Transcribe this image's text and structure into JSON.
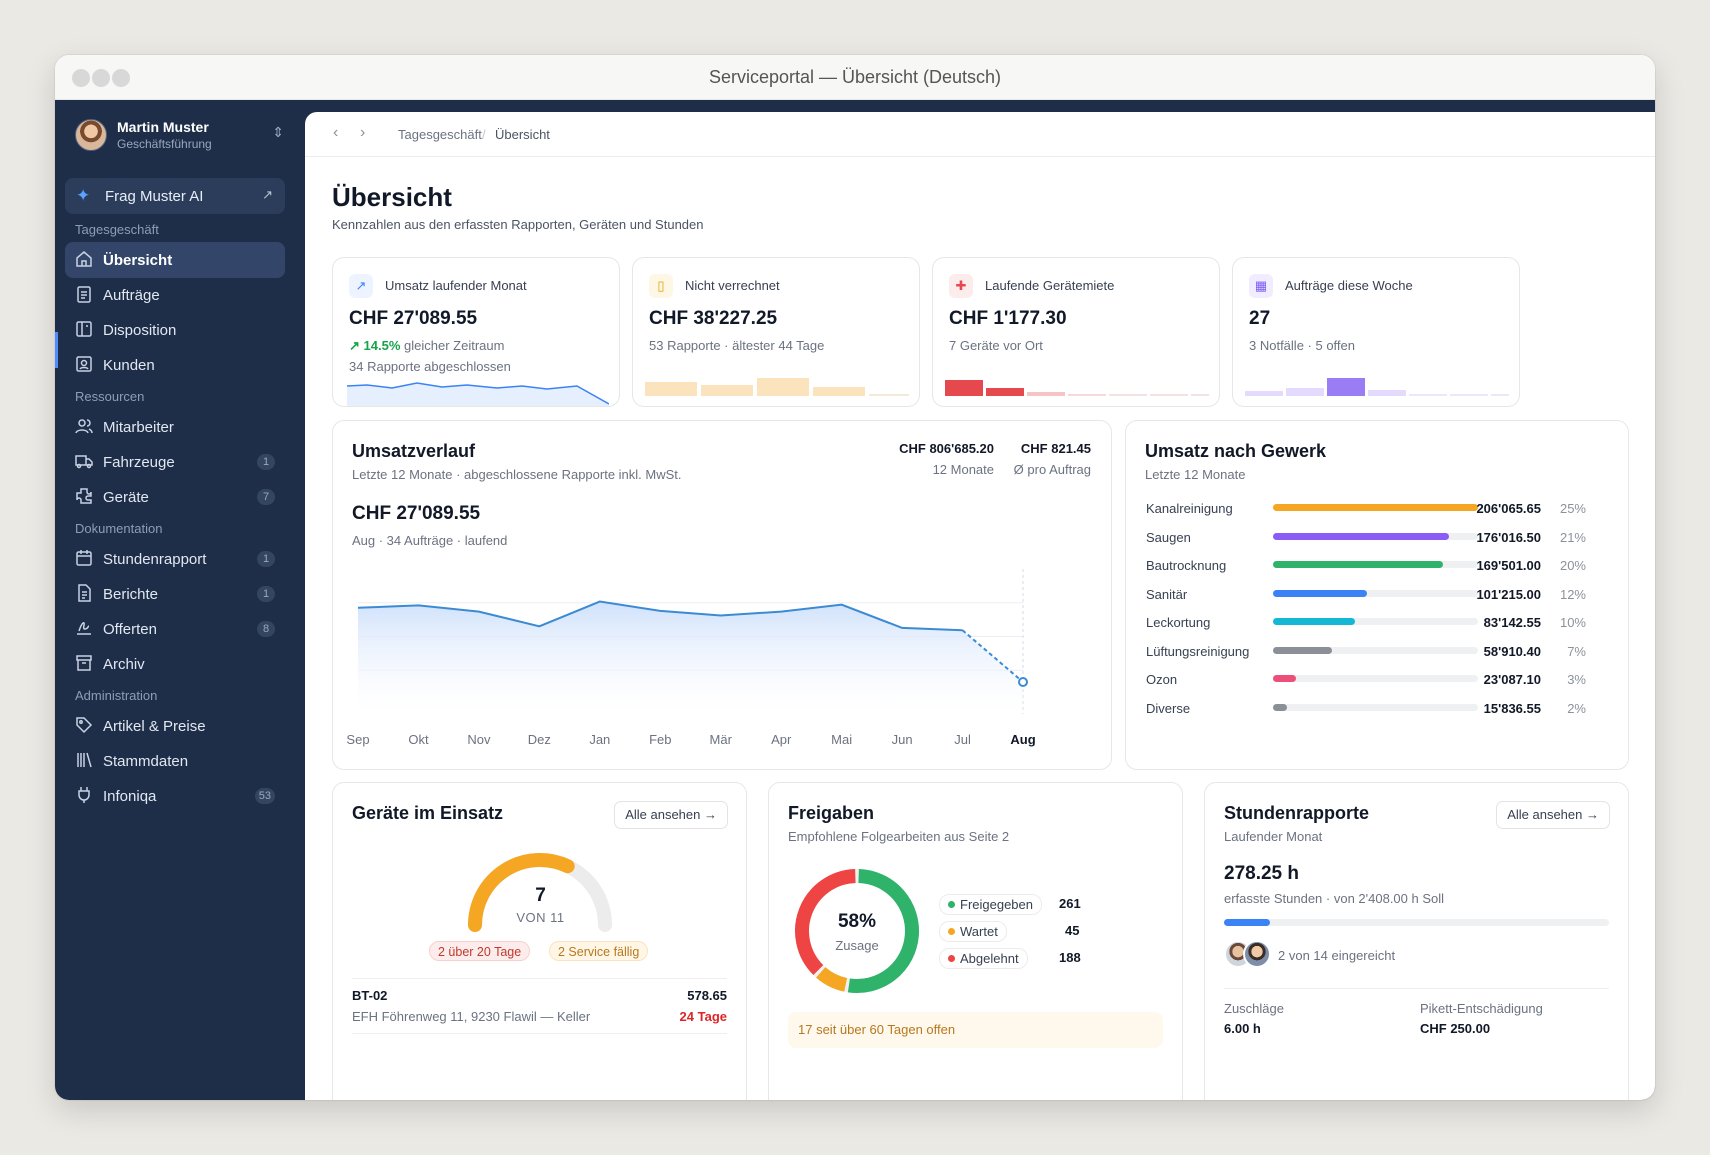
{
  "window": {
    "title": "Serviceportal — Übersicht (Deutsch)"
  },
  "user": {
    "name": "Martin Muster",
    "role": "Geschäftsführung"
  },
  "ai": {
    "label": "Frag Muster AI"
  },
  "sidebar": {
    "sections": [
      "Tagesgeschäft",
      "Ressourcen",
      "Dokumentation",
      "Administration"
    ],
    "items": [
      {
        "label": "Übersicht",
        "badge": ""
      },
      {
        "label": "Aufträge",
        "badge": ""
      },
      {
        "label": "Disposition",
        "badge": ""
      },
      {
        "label": "Kunden",
        "badge": ""
      },
      {
        "label": "Mitarbeiter",
        "badge": ""
      },
      {
        "label": "Fahrzeuge",
        "badge": "1"
      },
      {
        "label": "Geräte",
        "badge": "7"
      },
      {
        "label": "Stundenrapport",
        "badge": "1"
      },
      {
        "label": "Berichte",
        "badge": "1"
      },
      {
        "label": "Offerten",
        "badge": "8"
      },
      {
        "label": "Archiv",
        "badge": ""
      },
      {
        "label": "Artikel & Preise",
        "badge": ""
      },
      {
        "label": "Stammdaten",
        "badge": ""
      },
      {
        "label": "Infoniqa",
        "badge": "53"
      }
    ]
  },
  "breadcrumb": {
    "parent": "Tagesgeschäft",
    "separator": "/",
    "current": "Übersicht"
  },
  "page": {
    "title": "Übersicht",
    "subtitle": "Kennzahlen aus den erfassten Rapporten, Geräten und Stunden"
  },
  "kpis": [
    {
      "label": "Umsatz laufender Monat",
      "value": "CHF 27'089.55",
      "trend": "14.5%",
      "trend_text": "gleicher Zeitraum",
      "sub2": "34 Rapporte abgeschlossen"
    },
    {
      "label": "Nicht verrechnet",
      "value": "CHF 38'227.25",
      "sub": "53 Rapporte · ältester 44 Tage"
    },
    {
      "label": "Laufende Gerätemiete",
      "value": "CHF 1'177.30",
      "sub": "7 Geräte vor Ort"
    },
    {
      "label": "Aufträge diese Woche",
      "value": "27",
      "sub": "3 Notfälle · 5 offen"
    }
  ],
  "umsatz": {
    "title": "Umsatzverlauf",
    "subtitle": "Letzte 12 Monate · abgeschlossene Rapporte inkl. MwSt.",
    "total_value": "CHF 806'685.20",
    "total_label": "12 Monate",
    "avg_value": "CHF 821.45",
    "avg_label": "Ø pro Auftrag",
    "current_value": "CHF 27'089.55",
    "current_label": "Aug · 34 Aufträge · laufend"
  },
  "chart_data": {
    "type": "area",
    "categories": [
      "Sep",
      "Okt",
      "Nov",
      "Dez",
      "Jan",
      "Feb",
      "Mär",
      "Apr",
      "Mai",
      "Jun",
      "Jul",
      "Aug"
    ],
    "values": [
      75000,
      76500,
      72500,
      63000,
      79000,
      73000,
      70000,
      72500,
      77000,
      62000,
      60500,
      27089.55
    ],
    "ylim": [
      0,
      100000
    ],
    "grid": true
  },
  "gewerk": {
    "title": "Umsatz nach Gewerk",
    "subtitle": "Letzte 12 Monate",
    "rows": [
      {
        "name": "Kanalreinigung",
        "value": "206'065.65",
        "pct": "25%",
        "share": 1.0,
        "color": "#f5a623"
      },
      {
        "name": "Saugen",
        "value": "176'016.50",
        "pct": "21%",
        "share": 0.86,
        "color": "#8b5cf6"
      },
      {
        "name": "Bautrocknung",
        "value": "169'501.00",
        "pct": "20%",
        "share": 0.83,
        "color": "#2fb26a"
      },
      {
        "name": "Sanitär",
        "value": "101'215.00",
        "pct": "12%",
        "share": 0.46,
        "color": "#3b82f6"
      },
      {
        "name": "Leckortung",
        "value": "83'142.55",
        "pct": "10%",
        "share": 0.4,
        "color": "#14b8d4"
      },
      {
        "name": "Lüftungsreinigung",
        "value": "58'910.40",
        "pct": "7%",
        "share": 0.29,
        "color": "#8a8f98"
      },
      {
        "name": "Ozon",
        "value": "23'087.10",
        "pct": "3%",
        "share": 0.11,
        "color": "#ec4f79"
      },
      {
        "name": "Diverse",
        "value": "15'836.55",
        "pct": "2%",
        "share": 0.07,
        "color": "#8a8f98"
      }
    ]
  },
  "geraete": {
    "title": "Geräte im Einsatz",
    "button": "Alle ansehen",
    "count": "7",
    "of": "VON 11",
    "gauge_fraction": 0.64,
    "pill_red": "2 über 20 Tage",
    "pill_amber": "2 Service fällig",
    "rows": [
      {
        "id": "BT-02",
        "amount": "578.65",
        "addr": "EFH Föhrenweg 11, 9230 Flawil — Keller",
        "age": "24 Tage"
      }
    ]
  },
  "freigaben": {
    "title": "Freigaben",
    "subtitle": "Empfohlene Folgearbeiten aus Seite 2",
    "percent": "58%",
    "center_label": "Zusage",
    "legend": [
      {
        "label": "Freigegeben",
        "value": "261",
        "color": "#2fb26a"
      },
      {
        "label": "Wartet",
        "value": "45",
        "color": "#f5a623"
      },
      {
        "label": "Abgelehnt",
        "value": "188",
        "color": "#ef4444"
      }
    ],
    "warning": "17 seit über 60 Tagen offen"
  },
  "stunden": {
    "title": "Stundenrapporte",
    "subtitle": "Laufender Monat",
    "button": "Alle ansehen",
    "hours": "278.25 h",
    "hours_sub": "erfasste Stunden · von 2'408.00 h Soll",
    "progress": 0.12,
    "submitted": "2 von 14 eingereicht",
    "z_label": "Zuschläge",
    "z_value": "6.00 h",
    "p_label": "Pikett-Entschädigung",
    "p_value": "CHF 250.00"
  },
  "colors": {
    "sidebar": "#1e2d48",
    "accent": "#4f8cff",
    "green": "#16a34a",
    "red": "#ef4444",
    "amber": "#f5a623"
  }
}
